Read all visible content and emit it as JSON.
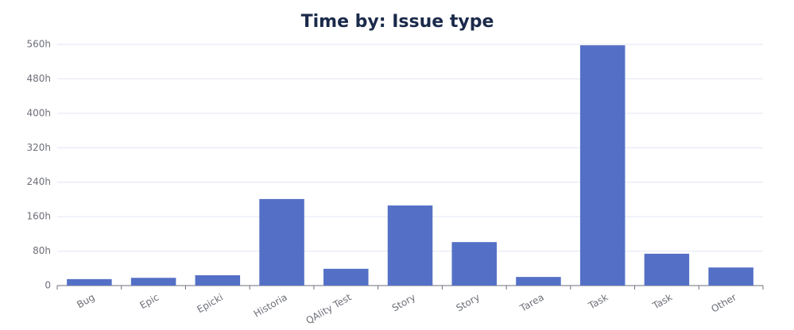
{
  "chart_data": {
    "type": "bar",
    "title": "Time by: Issue type",
    "categories": [
      "Bug",
      "Epic",
      "Epicki",
      "Historia",
      "QAlity Test",
      "Story",
      "Story",
      "Tarea",
      "Task",
      "Task",
      "Other"
    ],
    "values": [
      15,
      18,
      24,
      201,
      39,
      186,
      101,
      20,
      558,
      74,
      42
    ],
    "color": "#5470c6",
    "ylim": [
      0,
      560
    ],
    "yticks": [
      0,
      {
        "value": 80,
        "label": "80h"
      },
      {
        "value": 160,
        "label": "160h"
      },
      {
        "value": 240,
        "label": "240h"
      },
      {
        "value": 320,
        "label": "320h"
      },
      {
        "value": 400,
        "label": "400h"
      },
      {
        "value": 480,
        "label": "480h"
      },
      {
        "value": 560,
        "label": "560h"
      }
    ],
    "grid": true
  }
}
